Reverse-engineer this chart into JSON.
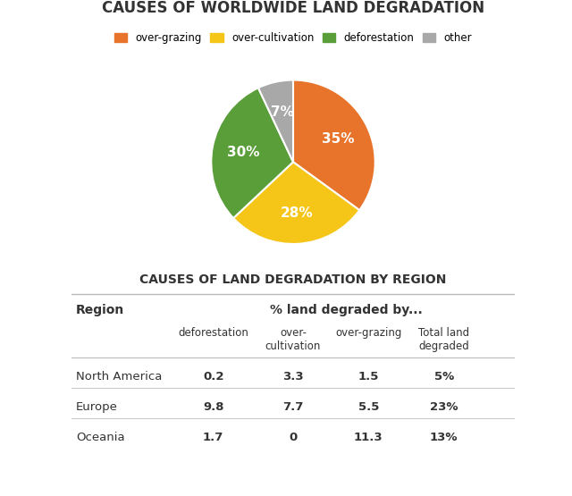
{
  "title": "CAUSES OF WORLDWIDE LAND DEGRADATION",
  "pie_labels": [
    "over-grazing",
    "over-cultivation",
    "deforestation",
    "other"
  ],
  "pie_values": [
    35,
    28,
    30,
    7
  ],
  "pie_colors": [
    "#E8732A",
    "#F5C518",
    "#5A9E3A",
    "#A8A8A8"
  ],
  "pie_pct_labels": [
    "35%",
    "28%",
    "30%",
    "7%"
  ],
  "table_title": "CAUSES OF LAND DEGRADATION BY REGION",
  "table_col_header1": "Region",
  "table_col_header2": "% land degraded by...",
  "table_sub_headers": [
    "deforestation",
    "over-\ncultivation",
    "over-grazing",
    "Total land\ndegraded"
  ],
  "table_rows": [
    [
      "North America",
      "0.2",
      "3.3",
      "1.5",
      "5%"
    ],
    [
      "Europe",
      "9.8",
      "7.7",
      "5.5",
      "23%"
    ],
    [
      "Oceania",
      "1.7",
      "0",
      "11.3",
      "13%"
    ]
  ],
  "bg_color": "#FFFFFF",
  "table_line_color": "#BBBBBB",
  "font_color": "#333333"
}
